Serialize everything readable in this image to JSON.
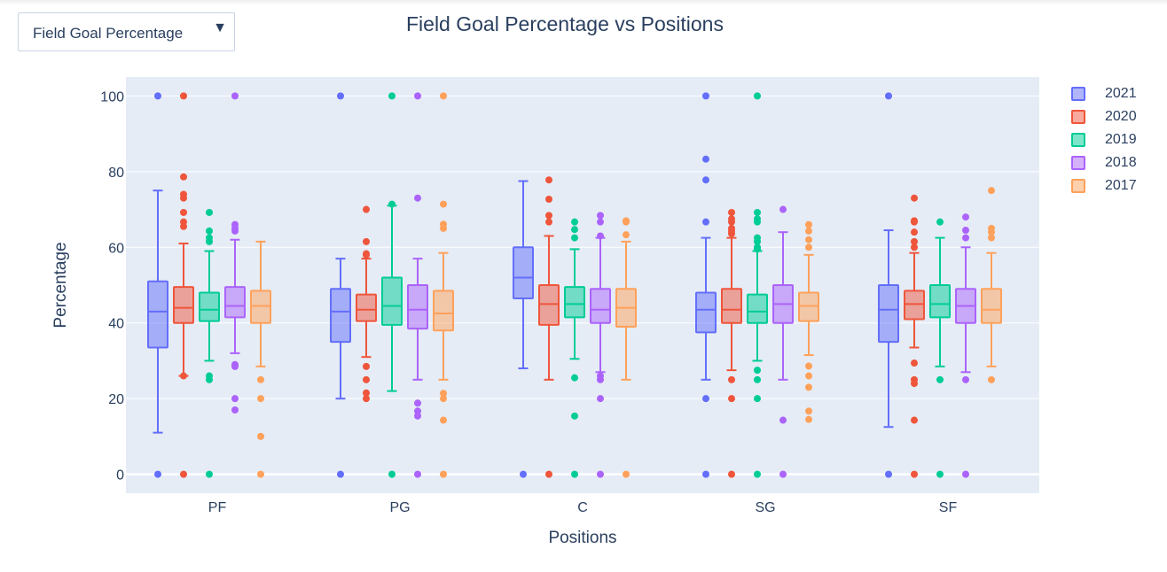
{
  "dropdown": {
    "value": "Field Goal Percentage",
    "arrow": "▼"
  },
  "chart_data": {
    "type": "box",
    "title": "Field Goal Percentage vs Positions",
    "xlabel": "Positions",
    "ylabel": "Percentage",
    "categories": [
      "PF",
      "PG",
      "C",
      "SG",
      "SF"
    ],
    "ylim": [
      -5,
      105
    ],
    "yticks": [
      0,
      20,
      40,
      60,
      80,
      100
    ],
    "grid": true,
    "legend_position": "top-right",
    "series": [
      {
        "name": "2021",
        "color": "#636efa",
        "boxes": [
          {
            "q1": 33.5,
            "median": 43,
            "q3": 51,
            "lower": 11,
            "upper": 75,
            "outliers": [
              0,
              100
            ]
          },
          {
            "q1": 35,
            "median": 43,
            "q3": 49,
            "lower": 20,
            "upper": 57,
            "outliers": [
              0,
              100
            ]
          },
          {
            "q1": 46.5,
            "median": 52,
            "q3": 60,
            "lower": 28,
            "upper": 77.5,
            "outliers": [
              0
            ]
          },
          {
            "q1": 37.5,
            "median": 43.5,
            "q3": 48,
            "lower": 25,
            "upper": 62.5,
            "outliers": [
              0,
              20,
              66.7,
              77.8,
              83.3,
              100
            ]
          },
          {
            "q1": 35,
            "median": 43.5,
            "q3": 50,
            "lower": 12.5,
            "upper": 64.5,
            "outliers": [
              0,
              100
            ]
          }
        ]
      },
      {
        "name": "2020",
        "color": "#ef553b",
        "boxes": [
          {
            "q1": 40,
            "median": 44,
            "q3": 49.5,
            "lower": 26,
            "upper": 61,
            "outliers": [
              0,
              26,
              65.5,
              66.7,
              69.2,
              73,
              74,
              78.6,
              100
            ]
          },
          {
            "q1": 40.5,
            "median": 43.5,
            "q3": 47.5,
            "lower": 31,
            "upper": 57,
            "outliers": [
              20,
              21.5,
              25,
              28.5,
              58,
              58.3,
              61.5,
              70
            ]
          },
          {
            "q1": 39.5,
            "median": 45,
            "q3": 50,
            "lower": 25,
            "upper": 63,
            "outliers": [
              0,
              66.7,
              68.4,
              72.7,
              77.8
            ]
          },
          {
            "q1": 40,
            "median": 43.5,
            "q3": 49,
            "lower": 27.5,
            "upper": 62.5,
            "outliers": [
              0,
              20,
              25,
              63.6,
              64.3,
              65,
              66.7,
              67.5,
              69.2
            ]
          },
          {
            "q1": 41,
            "median": 45,
            "q3": 48.5,
            "lower": 33.5,
            "upper": 58.5,
            "outliers": [
              0,
              14.3,
              24,
              25,
              29.4,
              60,
              61.5,
              64,
              66.7,
              67,
              73
            ]
          }
        ]
      },
      {
        "name": "2019",
        "color": "#00cc96",
        "boxes": [
          {
            "q1": 40.5,
            "median": 43.5,
            "q3": 48,
            "lower": 30,
            "upper": 59,
            "outliers": [
              0,
              25,
              26,
              61.5,
              62.5,
              64.3,
              69.2
            ]
          },
          {
            "q1": 39.5,
            "median": 44.5,
            "q3": 52,
            "lower": 22,
            "upper": 71,
            "outliers": [
              0,
              71.4,
              100
            ]
          },
          {
            "q1": 41.5,
            "median": 45,
            "q3": 49.5,
            "lower": 30.5,
            "upper": 59.5,
            "outliers": [
              0,
              15.4,
              25.5,
              62.5,
              64.7,
              66.7
            ]
          },
          {
            "q1": 40,
            "median": 43,
            "q3": 47.5,
            "lower": 30,
            "upper": 59,
            "outliers": [
              0,
              20,
              25,
              27.5,
              59.5,
              60,
              61.5,
              62.5,
              66.7,
              67.5,
              69.2,
              100
            ]
          },
          {
            "q1": 41.5,
            "median": 45,
            "q3": 50,
            "lower": 28.5,
            "upper": 62.5,
            "outliers": [
              0,
              25,
              66.7
            ]
          }
        ]
      },
      {
        "name": "2018",
        "color": "#ab63fa",
        "boxes": [
          {
            "q1": 41.5,
            "median": 44.5,
            "q3": 49.5,
            "lower": 32,
            "upper": 62,
            "outliers": [
              17,
              20,
              28.5,
              29,
              64.3,
              65,
              66,
              100
            ]
          },
          {
            "q1": 38.5,
            "median": 43.5,
            "q3": 50,
            "lower": 25,
            "upper": 57,
            "outliers": [
              0,
              15.4,
              16.7,
              18.8,
              73,
              100
            ]
          },
          {
            "q1": 40,
            "median": 43.5,
            "q3": 49,
            "lower": 27,
            "upper": 62.5,
            "outliers": [
              0,
              20,
              25,
              26,
              63,
              66.7,
              68.4
            ]
          },
          {
            "q1": 40,
            "median": 45,
            "q3": 50,
            "lower": 25,
            "upper": 64,
            "outliers": [
              0,
              14.3,
              70
            ]
          },
          {
            "q1": 40,
            "median": 44.5,
            "q3": 49,
            "lower": 27,
            "upper": 60,
            "outliers": [
              0,
              25,
              62.5,
              64.5,
              68
            ]
          }
        ]
      },
      {
        "name": "2017",
        "color": "#ffa15a",
        "boxes": [
          {
            "q1": 40,
            "median": 44.5,
            "q3": 48.5,
            "lower": 28.5,
            "upper": 61.5,
            "outliers": [
              0,
              10,
              20,
              25
            ]
          },
          {
            "q1": 38,
            "median": 42.5,
            "q3": 48.5,
            "lower": 25,
            "upper": 58.5,
            "outliers": [
              0,
              14.3,
              20,
              21.4,
              65,
              66.1,
              71.4,
              100
            ]
          },
          {
            "q1": 39,
            "median": 44,
            "q3": 49,
            "lower": 25,
            "upper": 61.5,
            "outliers": [
              0,
              63.3,
              66.7,
              67
            ]
          },
          {
            "q1": 40.5,
            "median": 44.5,
            "q3": 48,
            "lower": 31.5,
            "upper": 58,
            "outliers": [
              14.5,
              16.7,
              23,
              26,
              28.6,
              60,
              62,
              64.3,
              66
            ]
          },
          {
            "q1": 40,
            "median": 43.5,
            "q3": 49,
            "lower": 28.5,
            "upper": 58.5,
            "outliers": [
              25,
              62.5,
              64,
              65,
              75
            ]
          }
        ]
      }
    ]
  }
}
